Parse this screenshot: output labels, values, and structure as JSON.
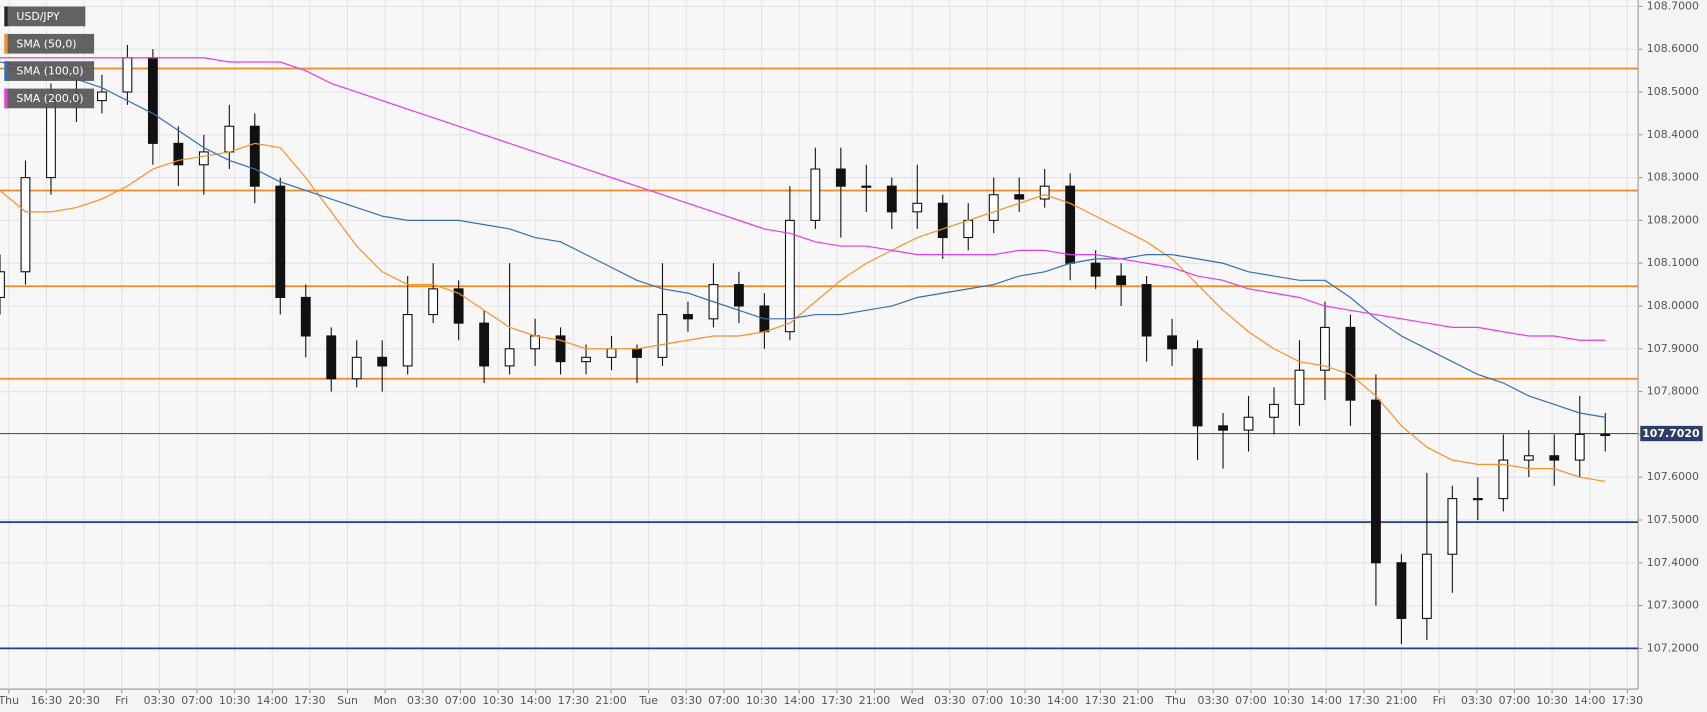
{
  "chart_data": {
    "type": "candlestick",
    "symbol": "USD/JPY",
    "xtick_labels": [
      "Thu",
      "16:30",
      "20:30",
      "Fri",
      "03:30",
      "07:00",
      "10:30",
      "14:00",
      "17:30",
      "Sun",
      "Mon",
      "03:30",
      "07:00",
      "10:30",
      "14:00",
      "17:30",
      "21:00",
      "Tue",
      "03:30",
      "07:00",
      "10:30",
      "14:00",
      "17:30",
      "21:00",
      "Wed",
      "03:30",
      "07:00",
      "10:30",
      "14:00",
      "17:30",
      "21:00",
      "Thu",
      "03:30",
      "07:00",
      "10:30",
      "14:00",
      "17:30",
      "21:00",
      "Fri",
      "03:30",
      "07:00",
      "10:30",
      "14:00",
      "17:30"
    ],
    "open": [
      108.02,
      108.08,
      108.3,
      108.48,
      108.48,
      108.5,
      108.58,
      108.38,
      108.33,
      108.36,
      108.42,
      108.28,
      108.02,
      107.93,
      107.83,
      107.88,
      107.86,
      107.98,
      108.04,
      107.96,
      107.86,
      107.9,
      107.93,
      107.87,
      107.88,
      107.9,
      107.88,
      107.98,
      107.97,
      108.05,
      108.0,
      107.94,
      108.2,
      108.32,
      108.28,
      108.28,
      108.22,
      108.24,
      108.16,
      108.2,
      108.26,
      108.25,
      108.28,
      108.1,
      108.07,
      108.05,
      107.93,
      107.9,
      107.72,
      107.71,
      107.74,
      107.77,
      107.85,
      107.95,
      107.78,
      107.4,
      107.27,
      107.42,
      107.55,
      107.55,
      107.64,
      107.65,
      107.64,
      107.7
    ],
    "high": [
      108.12,
      108.34,
      108.52,
      108.53,
      108.54,
      108.61,
      108.6,
      108.42,
      108.4,
      108.47,
      108.45,
      108.3,
      108.05,
      107.95,
      107.92,
      107.92,
      108.07,
      108.1,
      108.06,
      107.99,
      108.1,
      107.97,
      107.95,
      107.91,
      107.93,
      107.91,
      108.1,
      108.01,
      108.1,
      108.08,
      108.03,
      108.28,
      108.37,
      108.37,
      108.33,
      108.3,
      108.33,
      108.26,
      108.24,
      108.3,
      108.3,
      108.32,
      108.31,
      108.13,
      108.1,
      108.07,
      107.97,
      107.92,
      107.75,
      107.79,
      107.81,
      107.92,
      108.01,
      107.98,
      107.84,
      107.42,
      107.61,
      107.58,
      107.6,
      107.7,
      107.71,
      107.7,
      107.79,
      107.75
    ],
    "low": [
      107.98,
      108.05,
      108.26,
      108.43,
      108.45,
      108.47,
      108.33,
      108.28,
      108.26,
      108.32,
      108.24,
      107.98,
      107.88,
      107.8,
      107.81,
      107.8,
      107.84,
      107.96,
      107.92,
      107.82,
      107.84,
      107.86,
      107.84,
      107.84,
      107.85,
      107.82,
      107.86,
      107.94,
      107.95,
      107.96,
      107.9,
      107.92,
      108.18,
      108.16,
      108.22,
      108.18,
      108.18,
      108.11,
      108.13,
      108.17,
      108.22,
      108.23,
      108.06,
      108.04,
      108.0,
      107.87,
      107.86,
      107.64,
      107.62,
      107.66,
      107.7,
      107.72,
      107.78,
      107.72,
      107.3,
      107.21,
      107.22,
      107.33,
      107.5,
      107.52,
      107.6,
      107.58,
      107.6,
      107.66
    ],
    "close": [
      108.08,
      108.3,
      108.48,
      108.48,
      108.5,
      108.58,
      108.38,
      108.33,
      108.36,
      108.42,
      108.28,
      108.02,
      107.93,
      107.83,
      107.88,
      107.86,
      107.98,
      108.04,
      107.96,
      107.86,
      107.9,
      107.93,
      107.87,
      107.88,
      107.9,
      107.88,
      107.98,
      107.97,
      108.05,
      108.0,
      107.94,
      108.2,
      108.32,
      108.28,
      108.28,
      108.22,
      108.24,
      108.16,
      108.2,
      108.26,
      108.25,
      108.28,
      108.1,
      108.07,
      108.05,
      107.93,
      107.9,
      107.72,
      107.71,
      107.74,
      107.77,
      107.85,
      107.95,
      107.78,
      107.4,
      107.27,
      107.42,
      107.55,
      107.55,
      107.64,
      107.65,
      107.64,
      107.7,
      107.7
    ],
    "series": [
      {
        "name": "SMA (50,0)",
        "color": "#f7922a",
        "values": [
          108.27,
          108.22,
          108.22,
          108.23,
          108.25,
          108.28,
          108.32,
          108.34,
          108.35,
          108.36,
          108.38,
          108.37,
          108.3,
          108.22,
          108.14,
          108.08,
          108.05,
          108.05,
          108.03,
          107.99,
          107.95,
          107.93,
          107.92,
          107.9,
          107.9,
          107.9,
          107.91,
          107.92,
          107.93,
          107.93,
          107.94,
          107.96,
          108.01,
          108.06,
          108.1,
          108.13,
          108.16,
          108.18,
          108.2,
          108.22,
          108.24,
          108.26,
          108.24,
          108.21,
          108.18,
          108.15,
          108.11,
          108.05,
          107.99,
          107.94,
          107.9,
          107.87,
          107.86,
          107.84,
          107.79,
          107.72,
          107.67,
          107.64,
          107.63,
          107.63,
          107.62,
          107.62,
          107.6,
          107.59
        ]
      },
      {
        "name": "SMA (100,0)",
        "color": "#3a6db0",
        "values": [
          108.57,
          108.56,
          108.54,
          108.53,
          108.51,
          108.48,
          108.45,
          108.41,
          108.37,
          108.34,
          108.32,
          108.29,
          108.27,
          108.25,
          108.23,
          108.21,
          108.2,
          108.2,
          108.2,
          108.19,
          108.18,
          108.16,
          108.15,
          108.12,
          108.09,
          108.06,
          108.04,
          108.03,
          108.01,
          107.99,
          107.97,
          107.97,
          107.98,
          107.98,
          107.99,
          108.0,
          108.02,
          108.03,
          108.04,
          108.05,
          108.07,
          108.08,
          108.1,
          108.11,
          108.11,
          108.12,
          108.12,
          108.11,
          108.1,
          108.08,
          108.07,
          108.06,
          108.06,
          108.02,
          107.97,
          107.93,
          107.9,
          107.87,
          107.84,
          107.82,
          107.79,
          107.77,
          107.75,
          107.74
        ]
      },
      {
        "name": "SMA (200,0)",
        "color": "#e63ce6",
        "values": [
          108.58,
          108.58,
          108.58,
          108.58,
          108.58,
          108.58,
          108.58,
          108.58,
          108.58,
          108.57,
          108.57,
          108.57,
          108.55,
          108.52,
          108.5,
          108.48,
          108.46,
          108.44,
          108.42,
          108.4,
          108.38,
          108.36,
          108.34,
          108.32,
          108.3,
          108.28,
          108.26,
          108.24,
          108.22,
          108.2,
          108.18,
          108.17,
          108.15,
          108.14,
          108.14,
          108.13,
          108.12,
          108.12,
          108.12,
          108.12,
          108.13,
          108.13,
          108.12,
          108.12,
          108.11,
          108.1,
          108.09,
          108.07,
          108.06,
          108.04,
          108.03,
          108.02,
          108.0,
          107.99,
          107.98,
          107.97,
          107.96,
          107.95,
          107.95,
          107.94,
          107.93,
          107.93,
          107.92,
          107.92
        ]
      }
    ],
    "levels": [
      {
        "value": 108.555,
        "color": "#f08a24"
      },
      {
        "value": 108.27,
        "color": "#f08a24"
      },
      {
        "value": 108.046,
        "color": "#f08a24"
      },
      {
        "value": 107.83,
        "color": "#f08a24"
      },
      {
        "value": 107.495,
        "color": "#1f3f8f"
      },
      {
        "value": 107.2,
        "color": "#1f3f8f"
      }
    ],
    "last_price": {
      "value": 107.702,
      "label": "107.7020"
    },
    "ylim": [
      107.105,
      108.715
    ],
    "yticks": [
      {
        "value": 108.7,
        "label": "108.7000"
      },
      {
        "value": 108.6,
        "label": "108.6000"
      },
      {
        "value": 108.5,
        "label": "108.5000"
      },
      {
        "value": 108.4,
        "label": "108.4000"
      },
      {
        "value": 108.3,
        "label": "108.3000"
      },
      {
        "value": 108.2,
        "label": "108.2000"
      },
      {
        "value": 108.1,
        "label": "108.1000"
      },
      {
        "value": 108.0,
        "label": "108.0000"
      },
      {
        "value": 107.9,
        "label": "107.9000"
      },
      {
        "value": 107.8,
        "label": "107.8000"
      },
      {
        "value": 107.7,
        "label": "107.7000"
      },
      {
        "value": 107.6,
        "label": "107.6000"
      },
      {
        "value": 107.5,
        "label": "107.5000"
      },
      {
        "value": 107.4,
        "label": "107.4000"
      },
      {
        "value": 107.3,
        "label": "107.3000"
      },
      {
        "value": 107.2,
        "label": "107.2000"
      }
    ],
    "grid": true
  }
}
